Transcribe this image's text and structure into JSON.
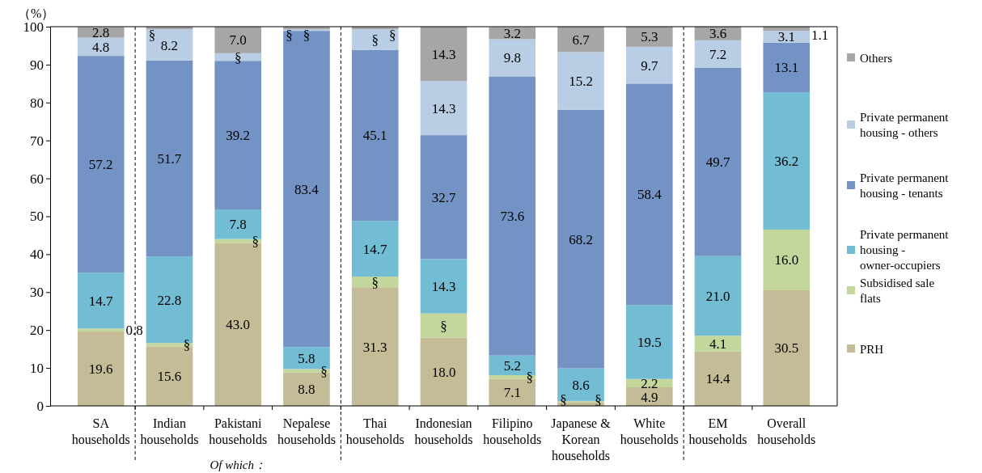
{
  "chart_data": {
    "type": "bar",
    "stacked": true,
    "ylabel": "（%）",
    "categories": [
      "SA households",
      "Indian households",
      "Pakistani households",
      "Nepalese households",
      "Thai households",
      "Indonesian households",
      "Filipino households",
      "Japanese & Korean households",
      "White households",
      "EM households",
      "Overall households"
    ],
    "series": [
      {
        "name": "PRH",
        "color": "#c4bc96",
        "values": [
          19.6,
          15.6,
          43.0,
          8.8,
          31.3,
          18.0,
          7.1,
          1.0,
          4.9,
          14.4,
          30.5
        ],
        "value_labels": [
          "19.6",
          "15.6",
          "43.0",
          "8.8",
          "31.3",
          "18.0",
          "7.1",
          "§",
          "4.9",
          "14.4",
          "30.5"
        ]
      },
      {
        "name": "Subsidised sale flats",
        "color": "#c3d69b",
        "values": [
          0.8,
          1.0,
          1.0,
          0.9,
          2.8,
          6.4,
          1.0,
          0.3,
          2.2,
          4.1,
          16.0
        ],
        "value_labels": [
          "0.8",
          "§",
          "§",
          "§",
          "§",
          "§",
          "§",
          "§",
          "2.2",
          "4.1",
          "16.0"
        ]
      },
      {
        "name": "Private permanent housing - owner-occupiers",
        "color": "#72bcd4",
        "values": [
          14.7,
          22.8,
          7.8,
          5.8,
          14.7,
          14.3,
          5.2,
          8.6,
          19.5,
          21.0,
          36.2
        ],
        "value_labels": [
          "14.7",
          "22.8",
          "7.8",
          "5.8",
          "14.7",
          "14.3",
          "5.2",
          "8.6",
          "19.5",
          "21.0",
          "36.2"
        ]
      },
      {
        "name": "Private permanent housing - tenants",
        "color": "#7293c4",
        "values": [
          57.2,
          51.7,
          39.2,
          83.4,
          45.1,
          32.7,
          73.6,
          68.2,
          58.4,
          49.7,
          13.1
        ],
        "value_labels": [
          "57.2",
          "51.7",
          "39.2",
          "83.4",
          "45.1",
          "32.7",
          "73.6",
          "68.2",
          "58.4",
          "49.7",
          "13.1"
        ]
      },
      {
        "name": "Private permanent housing - others",
        "color": "#b9cde5",
        "values": [
          4.8,
          8.2,
          2.0,
          0.4,
          5.4,
          14.3,
          9.8,
          15.2,
          9.7,
          7.2,
          3.1
        ],
        "value_labels": [
          "4.8",
          "8.2",
          "§",
          "§",
          "§",
          "14.3",
          "9.8",
          "15.2",
          "9.7",
          "7.2",
          "3.1"
        ]
      },
      {
        "name": "Others",
        "color": "#a6a6a6",
        "values": [
          2.8,
          0.7,
          7.0,
          0.7,
          0.7,
          14.3,
          3.2,
          6.7,
          5.3,
          3.6,
          1.1
        ],
        "value_labels": [
          "2.8",
          "§",
          "7.0",
          "§",
          "§",
          "14.3",
          "3.2",
          "6.7",
          "5.3",
          "3.6",
          "1.1"
        ]
      }
    ],
    "ylim": [
      0,
      100
    ],
    "yticks": [
      0,
      10,
      20,
      30,
      40,
      50,
      60,
      70,
      80,
      90,
      100
    ],
    "grid": false,
    "legend": "right",
    "annotations": [
      "Of which："
    ]
  }
}
